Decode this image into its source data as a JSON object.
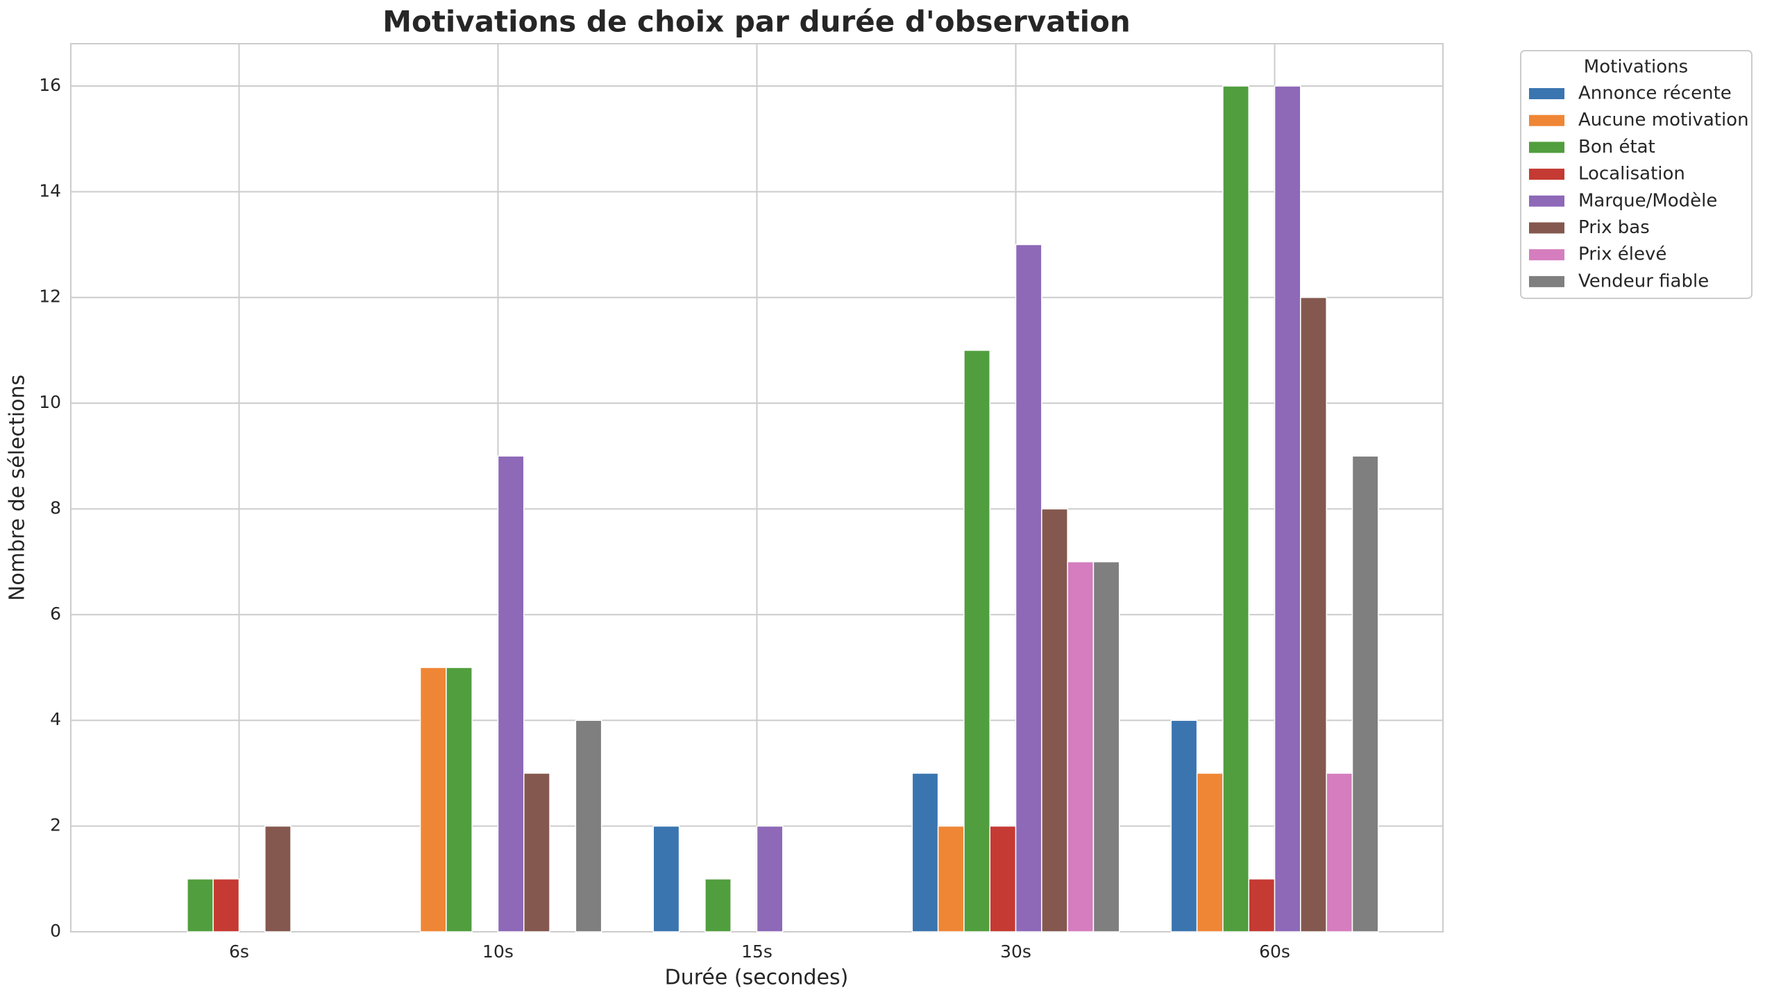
{
  "chart_data": {
    "type": "bar",
    "title": "Motivations de choix par durée d'observation",
    "x_label": "Durée (secondes)",
    "y_label": "Nombre de sélections",
    "legend_title": "Motivations",
    "categories": [
      "6s",
      "10s",
      "15s",
      "30s",
      "60s"
    ],
    "series": [
      {
        "name": "Annonce récente",
        "color": "#3a75b0",
        "values": [
          0,
          0,
          2,
          3,
          4
        ]
      },
      {
        "name": "Aucune motivation",
        "color": "#ef8636",
        "values": [
          0,
          5,
          0,
          2,
          3
        ]
      },
      {
        "name": "Bon état",
        "color": "#519e3e",
        "values": [
          1,
          5,
          1,
          11,
          16
        ]
      },
      {
        "name": "Localisation",
        "color": "#c53a32",
        "values": [
          1,
          0,
          0,
          2,
          1
        ]
      },
      {
        "name": "Marque/Modèle",
        "color": "#8d69b8",
        "values": [
          0,
          9,
          2,
          13,
          16
        ]
      },
      {
        "name": "Prix bas",
        "color": "#84584e",
        "values": [
          2,
          3,
          0,
          8,
          12
        ]
      },
      {
        "name": "Prix élevé",
        "color": "#d57dbe",
        "values": [
          0,
          0,
          0,
          7,
          3
        ]
      },
      {
        "name": "Vendeur fiable",
        "color": "#7f7f7f",
        "values": [
          0,
          4,
          0,
          7,
          9
        ]
      }
    ],
    "ylim": [
      0,
      16.8
    ],
    "yticks": [
      0,
      2,
      4,
      6,
      8,
      10,
      12,
      14,
      16
    ],
    "grid": true
  }
}
